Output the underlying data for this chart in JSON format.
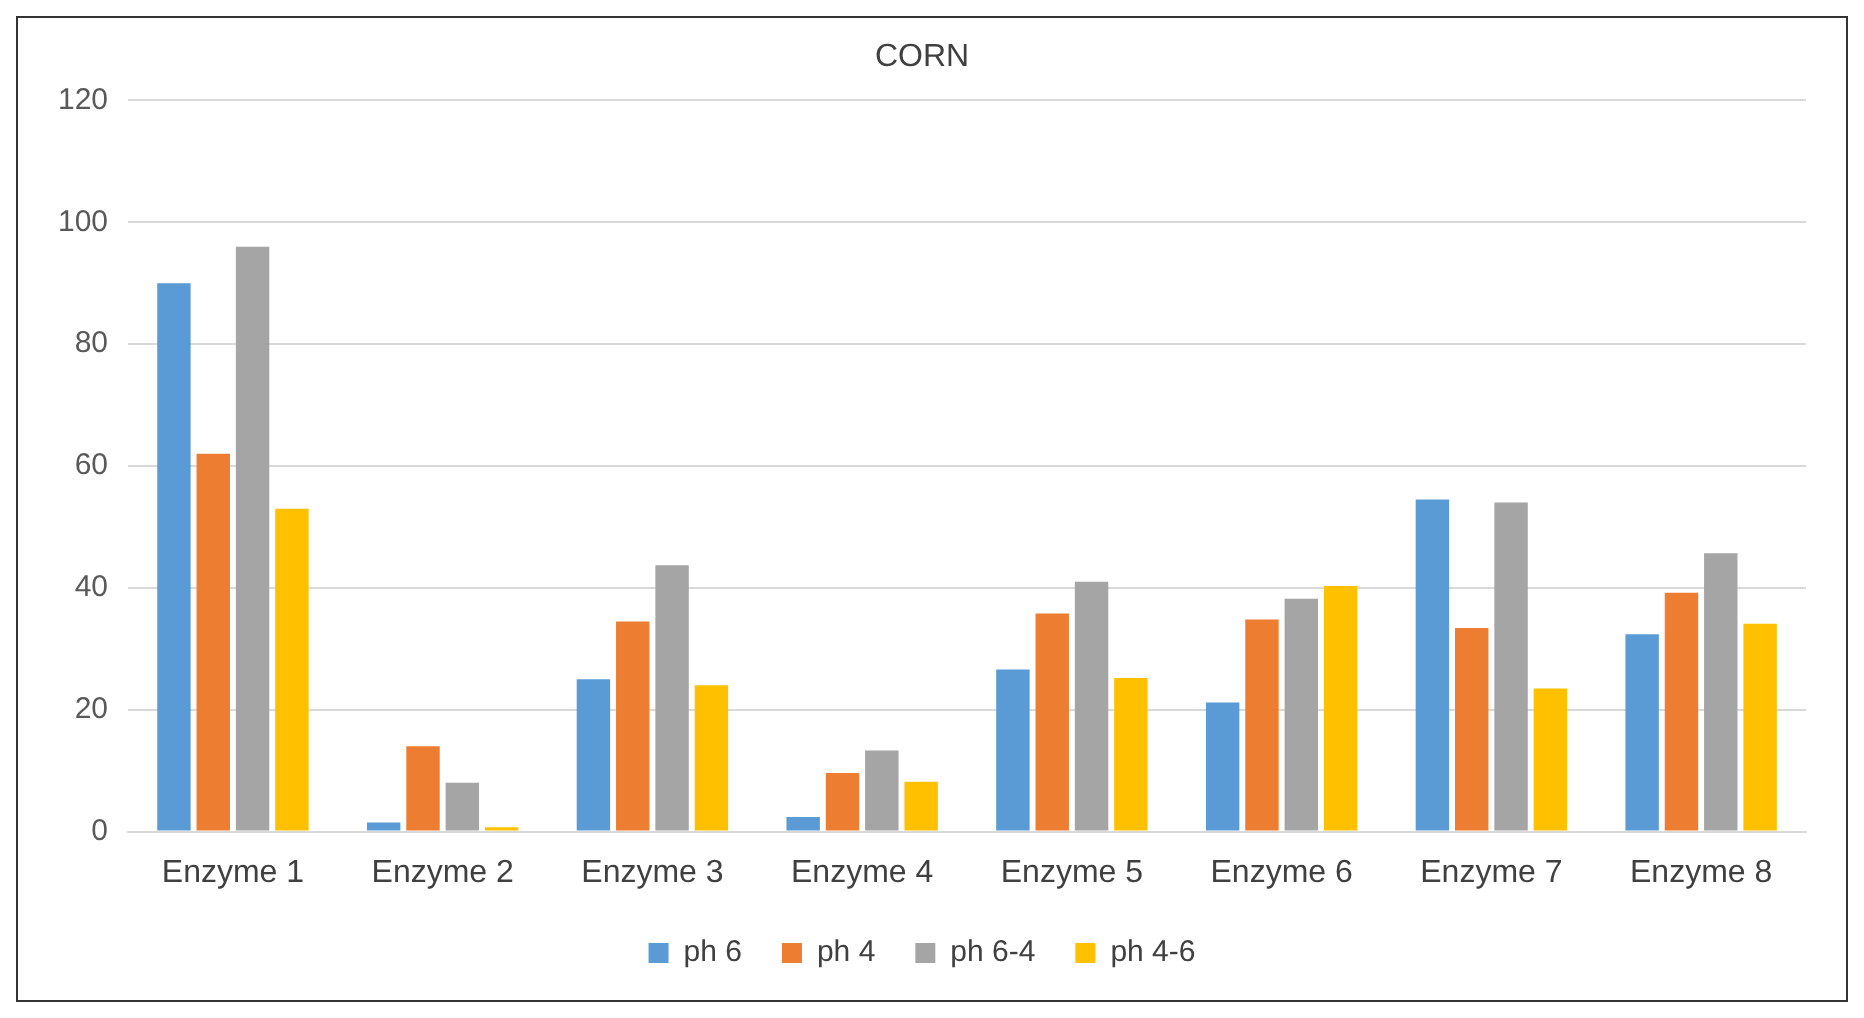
{
  "chart_data": {
    "type": "bar",
    "title": "CORN",
    "categories": [
      "Enzyme 1",
      "Enzyme 2",
      "Enzyme 3",
      "Enzyme 4",
      "Enzyme 5",
      "Enzyme 6",
      "Enzyme 7",
      "Enzyme 8"
    ],
    "series": [
      {
        "name": "ph 6",
        "color": "#5b9bd5",
        "values": [
          90,
          1.5,
          25,
          2.4,
          26.6,
          21.2,
          54.5,
          32.4
        ]
      },
      {
        "name": "ph 4",
        "color": "#ed7d31",
        "values": [
          62,
          14,
          34.5,
          9.6,
          35.8,
          34.8,
          33.4,
          39.2
        ]
      },
      {
        "name": "ph 6-4",
        "color": "#a5a5a5",
        "values": [
          96,
          8,
          43.7,
          13.3,
          41,
          38.2,
          54,
          45.7
        ]
      },
      {
        "name": "ph 4-6",
        "color": "#ffc000",
        "values": [
          53,
          0.7,
          24,
          8.2,
          25.2,
          40.3,
          23.5,
          34.1
        ]
      }
    ],
    "ylim": [
      0,
      120
    ],
    "yticks": [
      0,
      20,
      40,
      60,
      80,
      100,
      120
    ],
    "grid": "y",
    "legend": "bottom"
  }
}
